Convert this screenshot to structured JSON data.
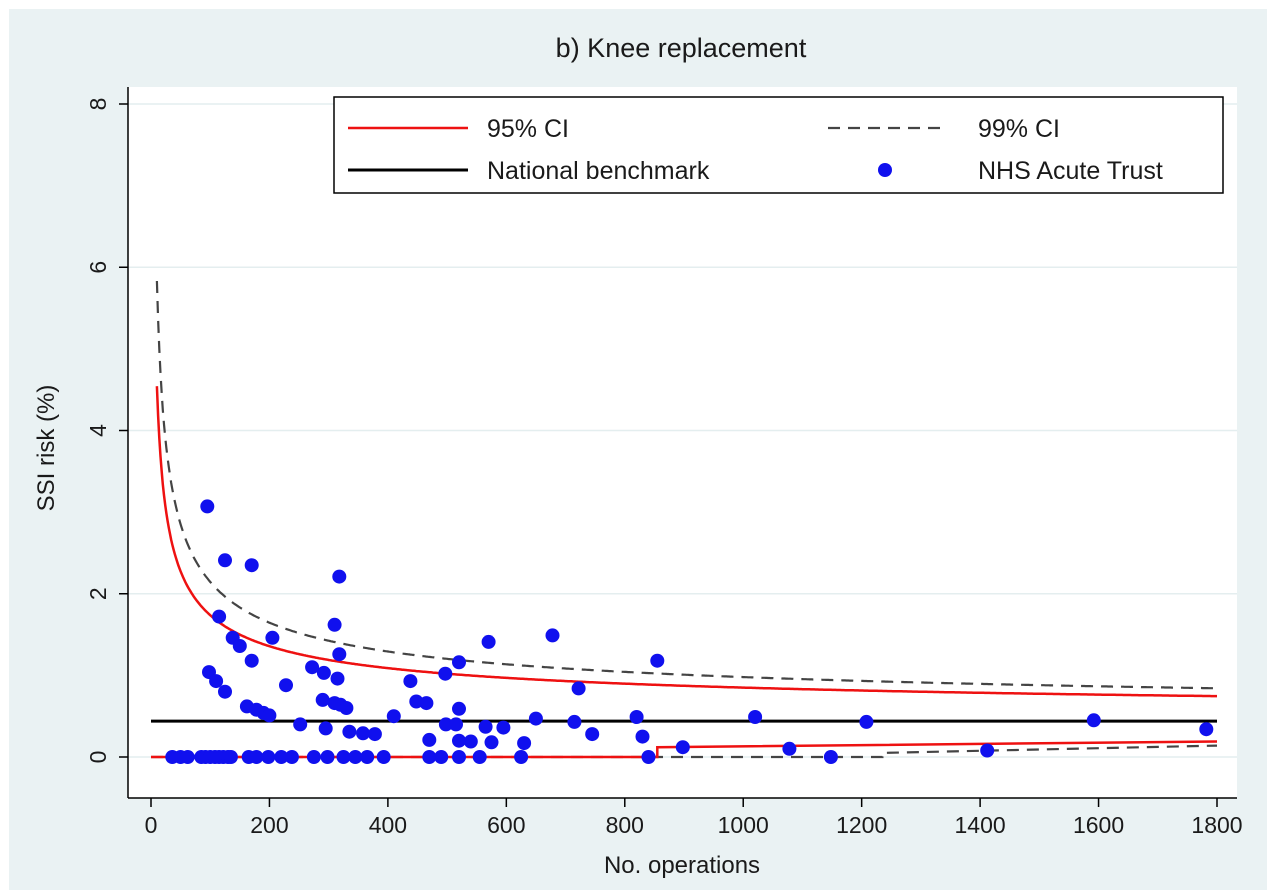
{
  "chart_data": {
    "type": "scatter",
    "title": "b) Knee replacement",
    "xlabel": "No. operations",
    "ylabel": "SSI risk (%)",
    "xlim": [
      0,
      1800
    ],
    "ylim": [
      0,
      8
    ],
    "xticks": [
      "0",
      "200",
      "400",
      "600",
      "800",
      "1000",
      "1200",
      "1400",
      "1600",
      "1800"
    ],
    "yticks": [
      "0",
      "2",
      "4",
      "6",
      "8"
    ],
    "grid": "horizontal",
    "legend_position": "top-right",
    "benchmark": 0.44,
    "colors": {
      "ci95": "#ee1111",
      "ci99": "#444444",
      "benchmark": "#000000",
      "points": "#1010ee"
    },
    "legend": [
      {
        "key": "ci95",
        "label": "95% CI",
        "style": "solid-red"
      },
      {
        "key": "ci99",
        "label": "99% CI",
        "style": "dashed-gray"
      },
      {
        "key": "benchmark",
        "label": "National benchmark",
        "style": "solid-black"
      },
      {
        "key": "points",
        "label": "NHS Acute Trust",
        "style": "blue-dot"
      }
    ],
    "series": [
      {
        "name": "NHS Acute Trust",
        "points": [
          [
            36,
            0
          ],
          [
            50,
            0
          ],
          [
            62,
            0
          ],
          [
            85,
            0
          ],
          [
            92,
            0
          ],
          [
            100,
            0
          ],
          [
            108,
            0
          ],
          [
            115,
            0
          ],
          [
            122,
            0
          ],
          [
            130,
            0
          ],
          [
            135,
            0
          ],
          [
            165,
            0
          ],
          [
            178,
            0
          ],
          [
            198,
            0
          ],
          [
            220,
            0
          ],
          [
            238,
            0
          ],
          [
            275,
            0
          ],
          [
            298,
            0
          ],
          [
            325,
            0
          ],
          [
            345,
            0
          ],
          [
            365,
            0
          ],
          [
            393,
            0
          ],
          [
            470,
            0
          ],
          [
            490,
            0
          ],
          [
            520,
            0
          ],
          [
            555,
            0
          ],
          [
            625,
            0
          ],
          [
            840,
            0
          ],
          [
            1148,
            0
          ],
          [
            95,
            3.07
          ],
          [
            125,
            2.41
          ],
          [
            170,
            2.35
          ],
          [
            318,
            2.21
          ],
          [
            115,
            1.72
          ],
          [
            310,
            1.62
          ],
          [
            138,
            1.46
          ],
          [
            205,
            1.46
          ],
          [
            150,
            1.36
          ],
          [
            318,
            1.26
          ],
          [
            170,
            1.18
          ],
          [
            520,
            1.16
          ],
          [
            570,
            1.41
          ],
          [
            678,
            1.49
          ],
          [
            855,
            1.18
          ],
          [
            98,
            1.04
          ],
          [
            110,
            0.93
          ],
          [
            125,
            0.8
          ],
          [
            228,
            0.88
          ],
          [
            272,
            1.1
          ],
          [
            292,
            1.03
          ],
          [
            315,
            0.96
          ],
          [
            290,
            0.7
          ],
          [
            310,
            0.66
          ],
          [
            320,
            0.64
          ],
          [
            330,
            0.6
          ],
          [
            438,
            0.93
          ],
          [
            497,
            1.02
          ],
          [
            722,
            0.84
          ],
          [
            162,
            0.62
          ],
          [
            178,
            0.58
          ],
          [
            190,
            0.54
          ],
          [
            200,
            0.51
          ],
          [
            252,
            0.4
          ],
          [
            295,
            0.35
          ],
          [
            335,
            0.31
          ],
          [
            358,
            0.29
          ],
          [
            378,
            0.28
          ],
          [
            410,
            0.5
          ],
          [
            448,
            0.68
          ],
          [
            465,
            0.66
          ],
          [
            520,
            0.59
          ],
          [
            498,
            0.4
          ],
          [
            515,
            0.4
          ],
          [
            565,
            0.37
          ],
          [
            595,
            0.36
          ],
          [
            650,
            0.47
          ],
          [
            715,
            0.43
          ],
          [
            745,
            0.28
          ],
          [
            820,
            0.49
          ],
          [
            830,
            0.25
          ],
          [
            1020,
            0.49
          ],
          [
            1208,
            0.43
          ],
          [
            1592,
            0.45
          ],
          [
            1782,
            0.34
          ],
          [
            470,
            0.21
          ],
          [
            520,
            0.2
          ],
          [
            540,
            0.19
          ],
          [
            575,
            0.18
          ],
          [
            630,
            0.17
          ],
          [
            898,
            0.12
          ],
          [
            1078,
            0.1
          ],
          [
            1412,
            0.08
          ]
        ]
      },
      {
        "name": "95% CI"
      },
      {
        "name": "99% CI"
      },
      {
        "name": "National benchmark"
      }
    ],
    "ci_model": {
      "p": 0.0044,
      "upper95_z": 1.96,
      "upper99_z": 2.576,
      "lower95_steps": [
        [
          0,
          0
        ],
        [
          855,
          0
        ],
        [
          855,
          0.12
        ],
        [
          1800,
          0.19
        ]
      ],
      "lower99_steps": [
        [
          0,
          0
        ],
        [
          1235,
          0
        ],
        [
          1235,
          0.05
        ],
        [
          1800,
          0.14
        ]
      ]
    }
  }
}
